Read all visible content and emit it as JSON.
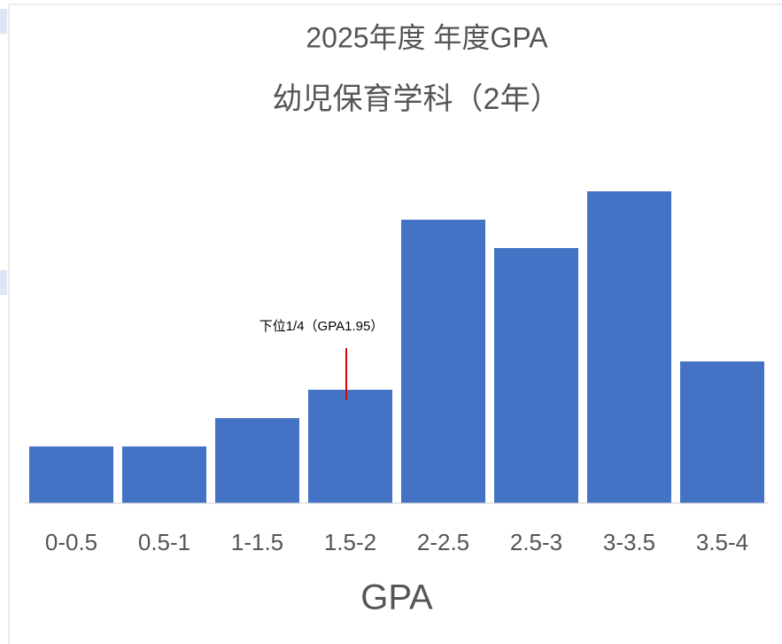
{
  "chart_data": {
    "type": "bar",
    "title": [
      "2025年度 年度GPA",
      "幼児保育学科（2年）"
    ],
    "x_label": "GPA",
    "categories": [
      "0-0.5",
      "0.5-1",
      "1-1.5",
      "1.5-2",
      "2-2.5",
      "2.5-3",
      "3-3.5",
      "3.5-4"
    ],
    "values": [
      2,
      2,
      3,
      4,
      10,
      9,
      11,
      5
    ],
    "color": "#4472c4",
    "annotation": "下位1/4（GPA1.95）",
    "annotation_color": "#e00000"
  }
}
